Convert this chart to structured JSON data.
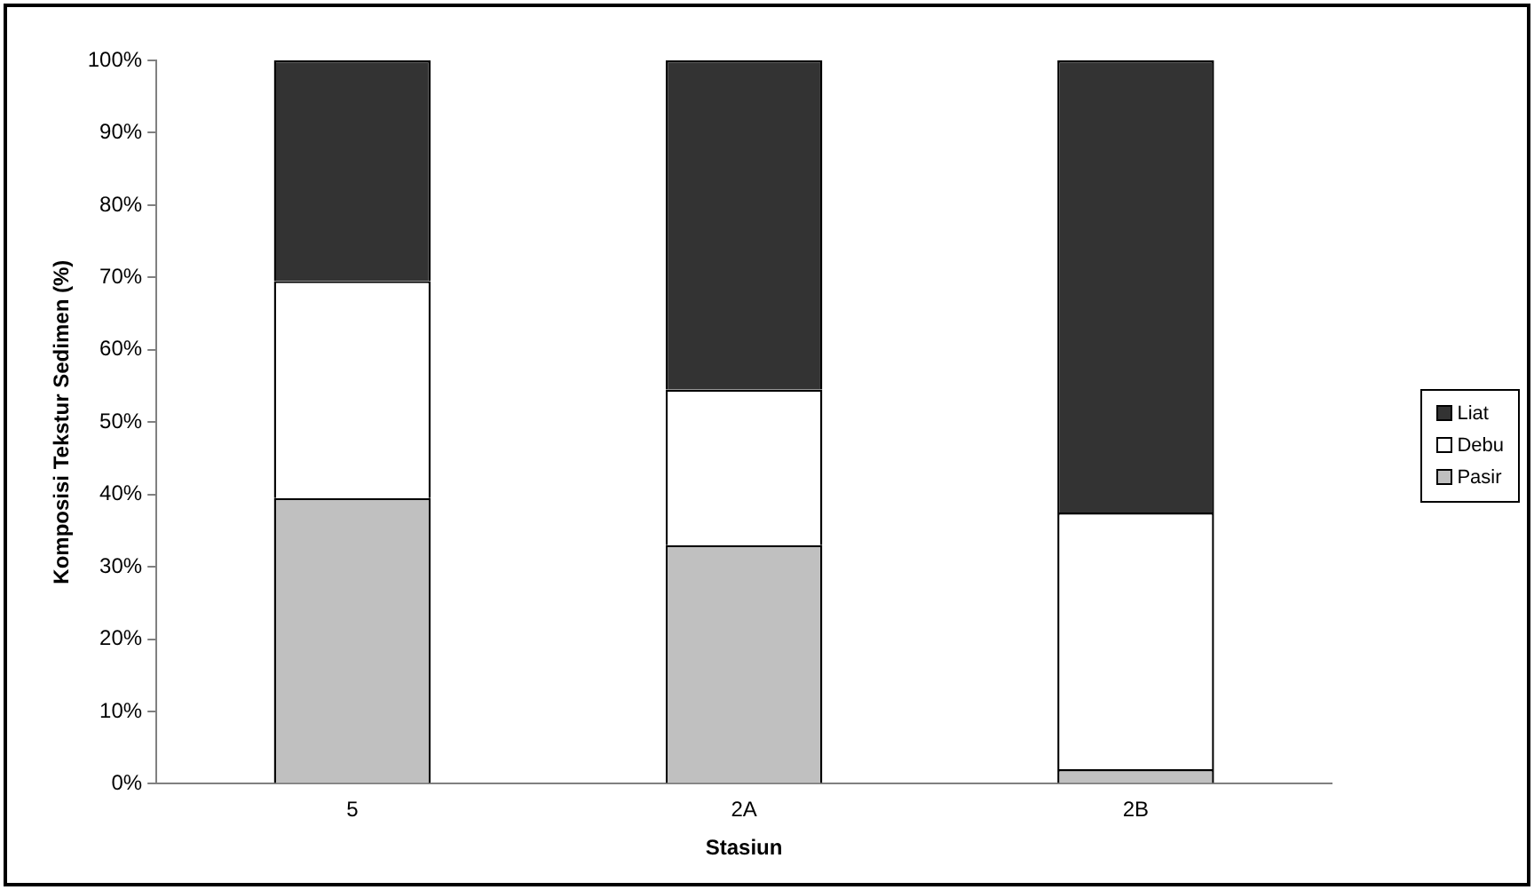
{
  "chart_data": {
    "type": "bar",
    "stacked": true,
    "xlabel": "Stasiun",
    "ylabel": "Komposisi Tekstur Sedimen (%)",
    "categories": [
      "5",
      "2A",
      "2B"
    ],
    "series": [
      {
        "name": "Pasir",
        "color": "#c0c0c0",
        "values": [
          39.5,
          33,
          2
        ]
      },
      {
        "name": "Debu",
        "color": "#ffffff",
        "values": [
          30,
          21.5,
          35.5
        ]
      },
      {
        "name": "Liat",
        "color": "#333333",
        "values": [
          30.5,
          45.5,
          62.5
        ]
      }
    ],
    "ylim": [
      0,
      100
    ],
    "yticks": [
      {
        "value": 0,
        "label": "0%"
      },
      {
        "value": 10,
        "label": "10%"
      },
      {
        "value": 20,
        "label": "20%"
      },
      {
        "value": 30,
        "label": "30%"
      },
      {
        "value": 40,
        "label": "40%"
      },
      {
        "value": 50,
        "label": "50%"
      },
      {
        "value": 60,
        "label": "60%"
      },
      {
        "value": 70,
        "label": "70%"
      },
      {
        "value": 80,
        "label": "80%"
      },
      {
        "value": 90,
        "label": "90%"
      },
      {
        "value": 100,
        "label": "100%"
      }
    ],
    "grid": false,
    "legend": "right"
  }
}
